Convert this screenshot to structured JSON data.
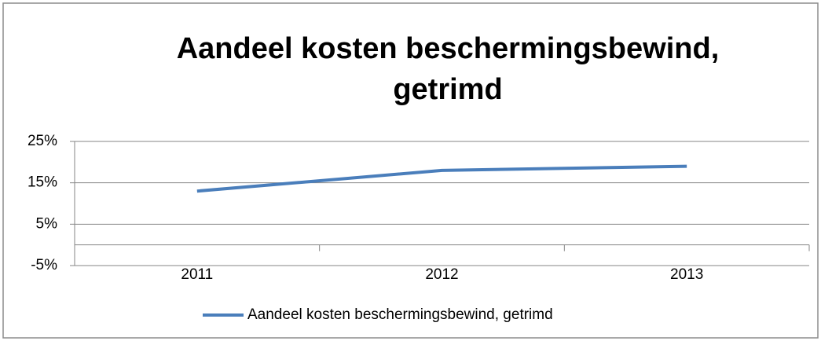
{
  "chart_data": {
    "type": "line",
    "title": "Aandeel kosten beschermingsbewind, getrimd",
    "categories": [
      "2011",
      "2012",
      "2013"
    ],
    "series": [
      {
        "name": "Aandeel kosten beschermingsbewind, getrimd",
        "color": "#4a7ebb",
        "values": [
          13,
          18,
          19
        ]
      }
    ],
    "ylim": [
      -5,
      25
    ],
    "yticks": [
      {
        "value": -5,
        "label": "-5%"
      },
      {
        "value": 5,
        "label": "5%"
      },
      {
        "value": 15,
        "label": "15%"
      },
      {
        "value": 25,
        "label": "25%"
      }
    ],
    "grid": true,
    "legend": "bottom"
  }
}
